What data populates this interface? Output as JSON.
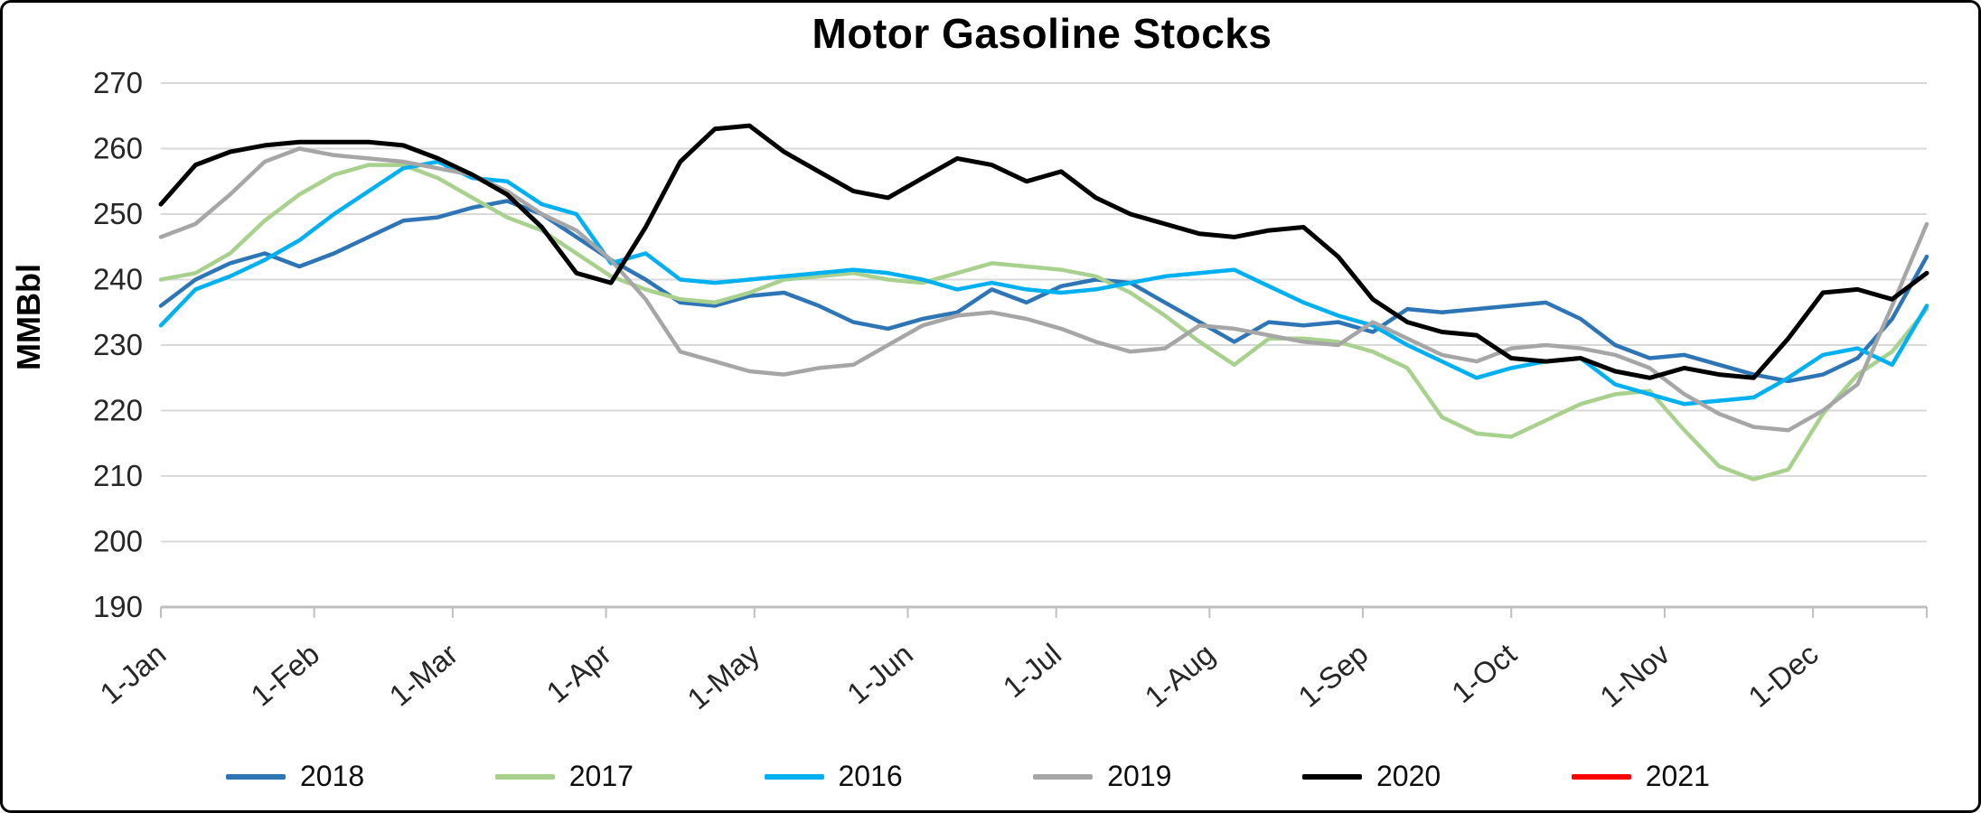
{
  "chart_data": {
    "type": "line",
    "title": "Motor Gasoline Stocks",
    "xlabel": "",
    "ylabel": "MMBbl",
    "ylim": [
      190,
      270
    ],
    "y_ticks": [
      190,
      200,
      210,
      220,
      230,
      240,
      250,
      260,
      270
    ],
    "x_tick_labels": [
      "1-Jan",
      "1-Feb",
      "1-Mar",
      "1-Apr",
      "1-May",
      "1-Jun",
      "1-Jul",
      "1-Aug",
      "1-Sep",
      "1-Oct",
      "1-Nov",
      "1-Dec"
    ],
    "x_unit": "weekly observations, 52 weeks",
    "grid": "horizontal",
    "legend_position": "bottom",
    "grid_color": "#D9D9D9",
    "axis_color": "#BFBFBF",
    "series": [
      {
        "name": "2018",
        "color": "#2E75B6",
        "values": [
          236,
          240,
          242.5,
          244,
          242,
          244,
          246.5,
          249,
          249.5,
          251,
          252,
          250,
          246.5,
          243,
          240,
          236.5,
          236,
          237.5,
          238,
          236,
          233.5,
          232.5,
          234,
          235,
          238.5,
          236.5,
          239,
          240,
          239.5,
          236.5,
          233.5,
          230.5,
          233.5,
          233,
          233.5,
          232,
          235.5,
          235,
          235.5,
          236,
          236.5,
          234,
          230,
          228,
          228.5,
          227,
          225.5,
          224.5,
          225.5,
          228,
          234,
          243.5
        ]
      },
      {
        "name": "2017",
        "color": "#A9D18E",
        "values": [
          240,
          241,
          244,
          249,
          253,
          256,
          257.5,
          257.5,
          255.5,
          252.5,
          249.5,
          247.5,
          244,
          240.5,
          238.5,
          237,
          236.5,
          238,
          240,
          240.5,
          241,
          240,
          239.5,
          241,
          242.5,
          242,
          241.5,
          240.5,
          238,
          234.5,
          230.5,
          227,
          231,
          231,
          230.5,
          229,
          226.5,
          219,
          216.5,
          216,
          218.5,
          221,
          222.5,
          223,
          217,
          211.5,
          209.5,
          211,
          219.5,
          225.5,
          229,
          235.5
        ]
      },
      {
        "name": "2016",
        "color": "#00B0F0",
        "values": [
          233,
          238.5,
          240.5,
          243,
          246,
          250,
          253.5,
          257,
          258,
          255.5,
          255,
          251.5,
          250,
          242.5,
          244,
          240,
          239.5,
          240,
          240.5,
          241,
          241.5,
          241,
          240,
          238.5,
          239.5,
          238.5,
          238,
          238.5,
          239.5,
          240.5,
          241,
          241.5,
          239,
          236.5,
          234.5,
          233,
          230,
          227.5,
          225,
          226.5,
          227.5,
          228,
          224,
          222.5,
          221,
          221.5,
          222,
          225,
          228.5,
          229.5,
          227,
          236
        ]
      },
      {
        "name": "2019",
        "color": "#A6A6A6",
        "values": [
          246.5,
          248.5,
          253,
          258,
          260,
          259,
          258.5,
          258,
          257,
          256,
          253.5,
          250,
          247.5,
          243,
          237,
          229,
          227.5,
          226,
          225.5,
          226.5,
          227,
          230,
          233,
          234.5,
          235,
          234,
          232.5,
          230.5,
          229,
          229.5,
          233,
          232.5,
          231.5,
          230.5,
          230,
          233.5,
          231,
          228.5,
          227.5,
          229.5,
          230,
          229.5,
          228.5,
          226.5,
          222.5,
          219.5,
          217.5,
          217,
          220,
          224,
          236,
          248.5
        ]
      },
      {
        "name": "2020",
        "color": "#000000",
        "values": [
          251.5,
          257.5,
          259.5,
          260.5,
          261,
          261,
          261,
          260.5,
          258.5,
          256,
          253,
          248,
          241,
          239.5,
          248,
          258,
          263,
          263.5,
          259.5,
          256.5,
          253.5,
          252.5,
          255.5,
          258.5,
          257.5,
          255,
          256.5,
          252.5,
          250,
          248.5,
          247,
          246.5,
          247.5,
          248,
          243.5,
          237,
          233.5,
          232,
          231.5,
          228,
          227.5,
          228,
          226,
          225,
          226.5,
          225.5,
          225,
          231,
          238,
          238.5,
          237,
          241
        ]
      },
      {
        "name": "2021",
        "color": "#FF0000",
        "values": []
      }
    ]
  }
}
